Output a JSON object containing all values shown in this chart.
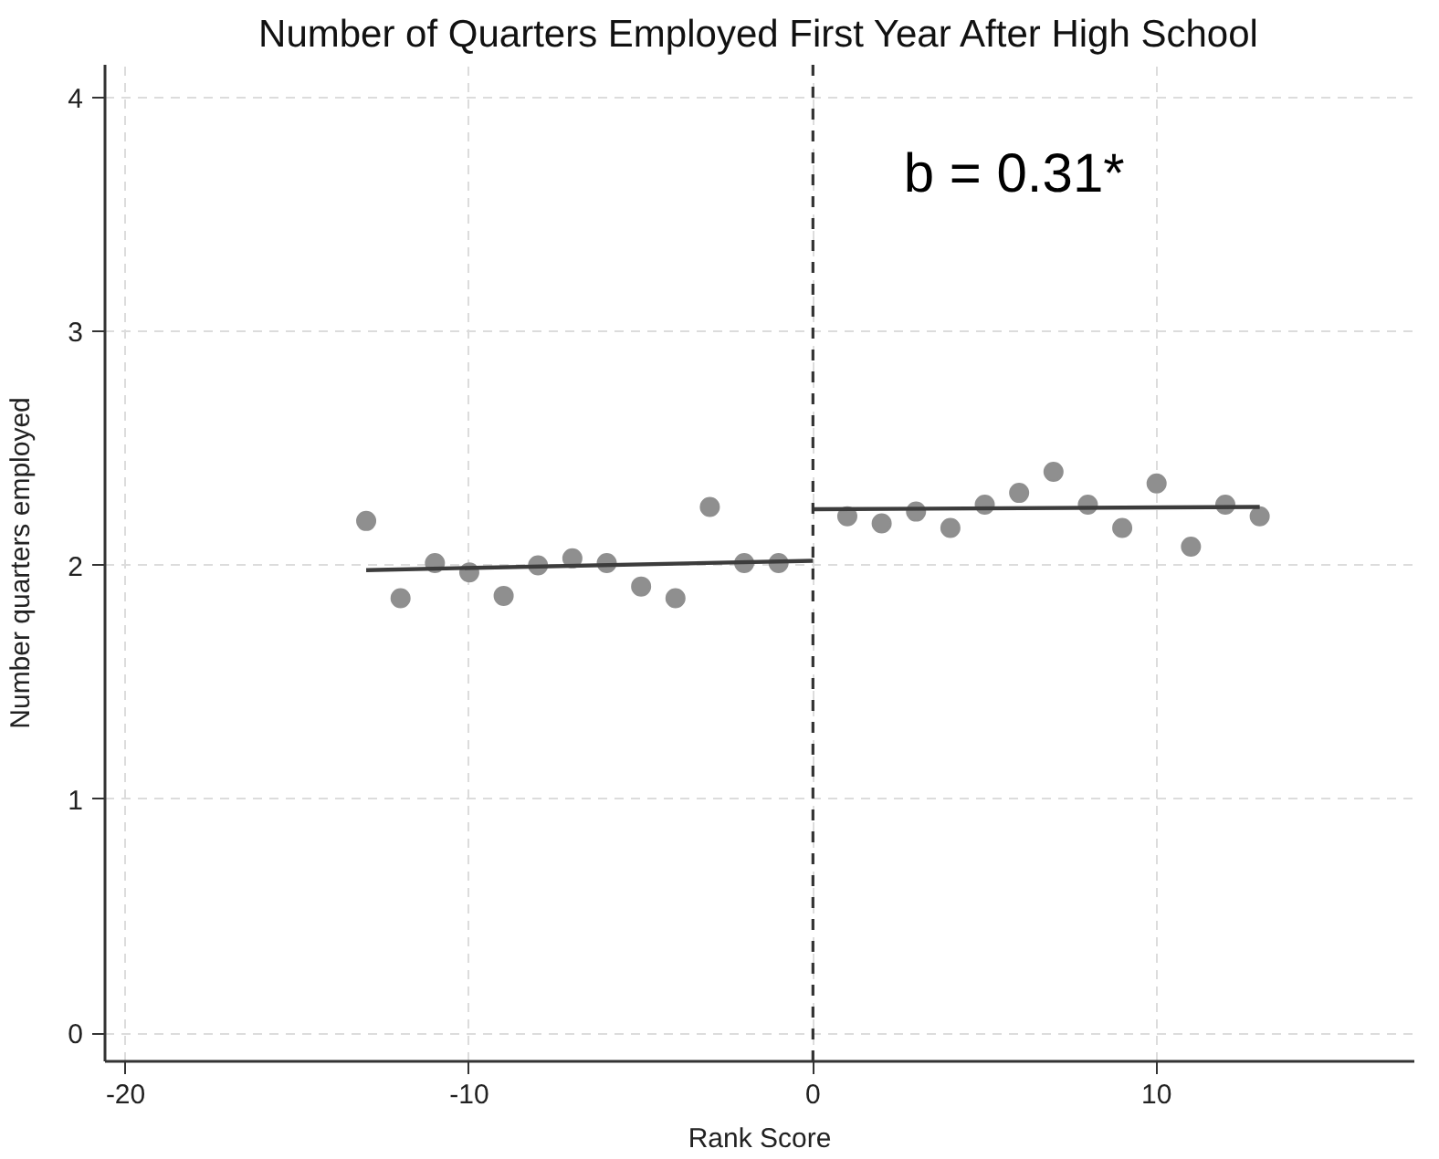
{
  "chart_data": {
    "type": "scatter",
    "title": "Number of Quarters Employed First Year After High School",
    "xlabel": "Rank Score",
    "ylabel": "Number quarters employed",
    "annotations": [
      "b = 0.31*"
    ],
    "xlim": [
      -20.6,
      17.5
    ],
    "ylim": [
      -0.12,
      4.14
    ],
    "xticks": [
      -20,
      -10,
      0,
      10
    ],
    "yticks": [
      0,
      1,
      2,
      3,
      4
    ],
    "grid": true,
    "ref_lines": [
      {
        "axis": "x",
        "value": 0,
        "color": "#333333",
        "line_style": "dashed"
      }
    ],
    "series": [
      {
        "color": "#8f8f8f",
        "marker": "circle",
        "x": [
          -13,
          -12,
          -11,
          -10,
          -9,
          -8,
          -7,
          -6,
          -5,
          -4,
          -3,
          -2,
          -1,
          1,
          2,
          3,
          4,
          5,
          6,
          7,
          8,
          9,
          10,
          11,
          12,
          13
        ],
        "values": [
          2.19,
          1.86,
          2.01,
          1.97,
          1.87,
          2.0,
          2.03,
          2.01,
          1.91,
          1.86,
          2.25,
          2.01,
          2.01,
          2.21,
          2.18,
          2.23,
          2.16,
          2.26,
          2.31,
          2.4,
          2.26,
          2.16,
          2.35,
          2.08,
          2.26,
          2.21
        ]
      },
      {
        "type": "line",
        "color": "#3c3c3c",
        "marker": "none",
        "x": [
          -13,
          0
        ],
        "values": [
          1.98,
          2.02
        ]
      },
      {
        "type": "line",
        "color": "#3c3c3c",
        "marker": "none",
        "x": [
          0,
          13
        ],
        "values": [
          2.24,
          2.25
        ]
      }
    ]
  }
}
